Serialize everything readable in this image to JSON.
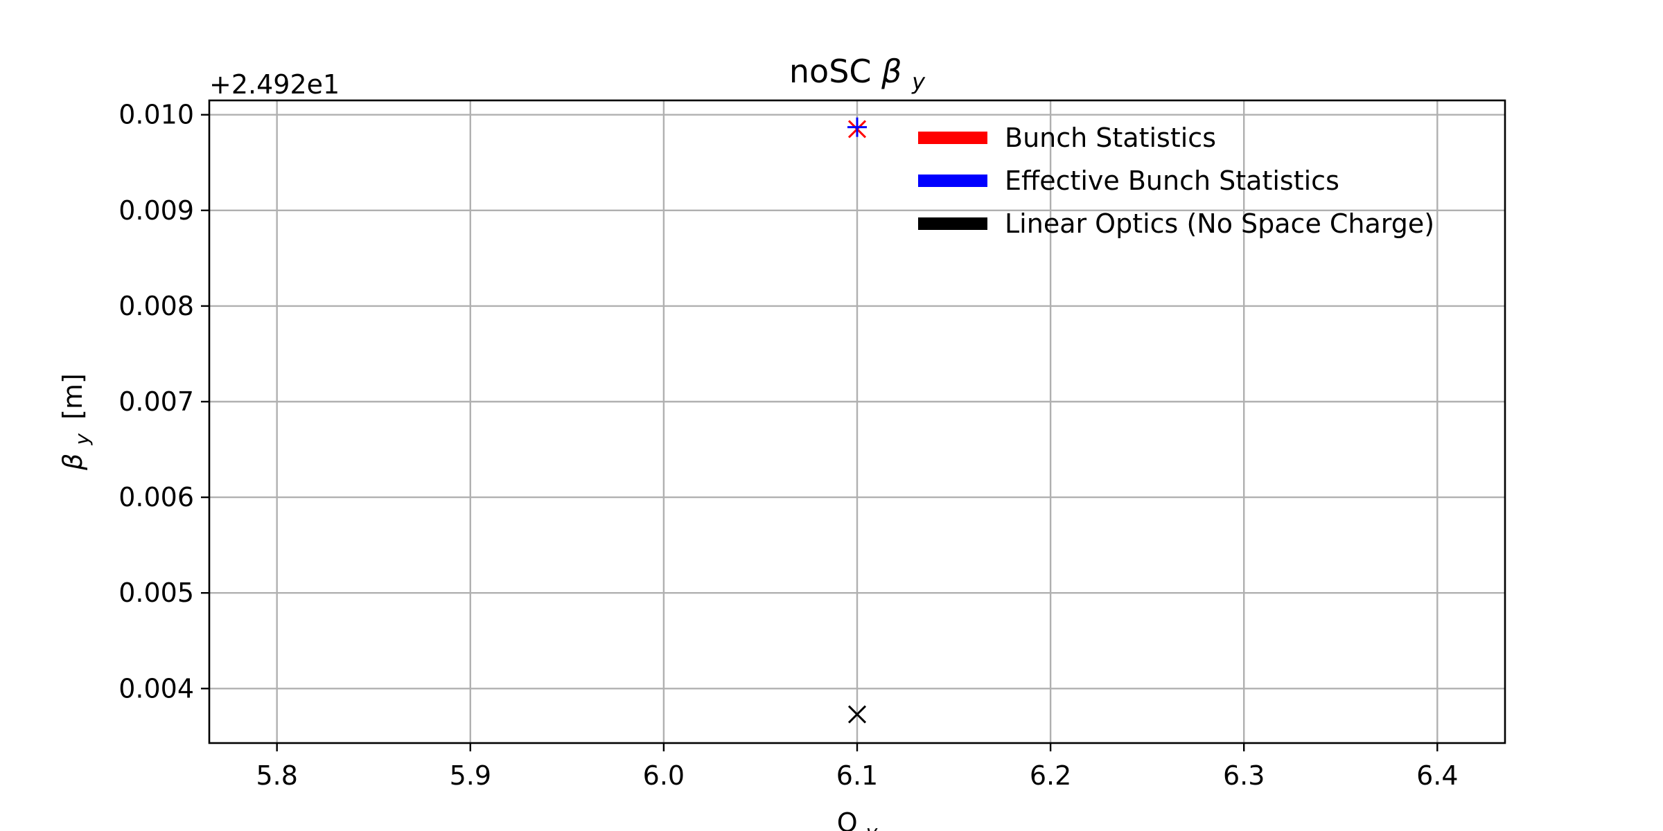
{
  "chart_data": {
    "type": "scatter",
    "title": "noSC",
    "title_symbol": "β",
    "title_subscript": "y",
    "xlabel": "Q",
    "xlabel_subscript": "y",
    "ylabel_symbol": "β",
    "ylabel_subscript": "y",
    "ylabel_unit": "[m]",
    "y_offset_text": "+2.492e1",
    "y_offset": 24.92,
    "xlim": [
      5.765,
      6.435
    ],
    "ylim": [
      0.00343,
      0.01015
    ],
    "xticks": [
      5.8,
      5.9,
      6.0,
      6.1,
      6.2,
      6.3,
      6.4
    ],
    "xtick_labels": [
      "5.8",
      "5.9",
      "6.0",
      "6.1",
      "6.2",
      "6.3",
      "6.4"
    ],
    "yticks": [
      0.004,
      0.005,
      0.006,
      0.007,
      0.008,
      0.009,
      0.01
    ],
    "ytick_labels": [
      "0.004",
      "0.005",
      "0.006",
      "0.007",
      "0.008",
      "0.009",
      "0.010"
    ],
    "grid": true,
    "legend_position": "top-right",
    "series": [
      {
        "name": "Bunch Statistics",
        "color": "#ff0000",
        "marker": "x",
        "points": [
          {
            "x": 6.1,
            "y": 0.00985
          }
        ]
      },
      {
        "name": "Effective Bunch Statistics",
        "color": "#0000ff",
        "marker": "+",
        "points": [
          {
            "x": 6.1,
            "y": 0.00987
          }
        ]
      },
      {
        "name": "Linear Optics (No Space Charge)",
        "color": "#000000",
        "marker": "x",
        "points": [
          {
            "x": 6.1,
            "y": 0.00373
          }
        ]
      }
    ]
  }
}
